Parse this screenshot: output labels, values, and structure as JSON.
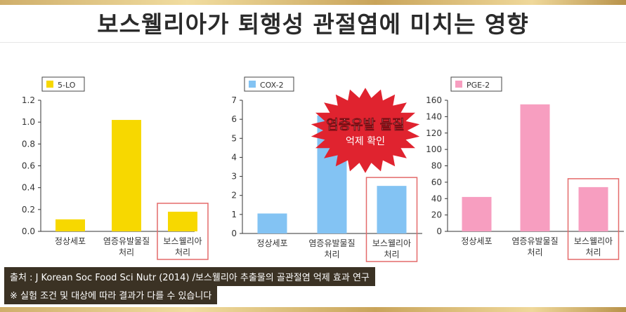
{
  "title": "보스웰리아가 퇴행성 관절염에 미치는 영향",
  "source_note": "출처 : J Korean Soc Food Sci Nutr (2014) /보스웰리아 추출물의 골관절염 억제 효과 연구",
  "disclaimer": "※ 실험 조건 및 대상에 따라 결과가 다를 수 있습니다",
  "badge": {
    "line1": "염증유발 물질",
    "line2": "억제 확인",
    "color": "#e0232f"
  },
  "highlight_color": "#e46a6a",
  "chart_data": [
    {
      "type": "bar",
      "legend": "5-LO",
      "color": "#f7d800",
      "categories": [
        [
          "정상세포"
        ],
        [
          "염증유발물질",
          "처리"
        ],
        [
          "보스웰리아",
          "처리"
        ]
      ],
      "values": [
        0.11,
        1.02,
        0.18
      ],
      "ylim": [
        0,
        1.2
      ],
      "yticks": [
        0.0,
        0.2,
        0.4,
        0.6,
        0.8,
        1.0,
        1.2
      ],
      "ytick_labels": [
        "0.0",
        "0.2",
        "0.4",
        "0.6",
        "0.8",
        "1.0",
        "1.2"
      ],
      "highlight_index": 2
    },
    {
      "type": "bar",
      "legend": "COX-2",
      "color": "#83c3f3",
      "categories": [
        [
          "정상세포"
        ],
        [
          "염증유발물질",
          "처리"
        ],
        [
          "보스웰리아",
          "처리"
        ]
      ],
      "values": [
        1.05,
        6.2,
        2.5
      ],
      "ylim": [
        0,
        7
      ],
      "yticks": [
        0,
        1,
        2,
        3,
        4,
        5,
        6,
        7
      ],
      "ytick_labels": [
        "0",
        "1",
        "2",
        "3",
        "4",
        "5",
        "6",
        "7"
      ],
      "highlight_index": 2
    },
    {
      "type": "bar",
      "legend": "PGE-2",
      "color": "#f79ec0",
      "categories": [
        [
          "정상세포"
        ],
        [
          "염증유발물질",
          "처리"
        ],
        [
          "보스웰리아",
          "처리"
        ]
      ],
      "values": [
        42,
        155,
        54
      ],
      "ylim": [
        0,
        160
      ],
      "yticks": [
        0,
        20,
        40,
        60,
        80,
        100,
        120,
        140,
        160
      ],
      "ytick_labels": [
        "0",
        "20",
        "40",
        "60",
        "80",
        "100",
        "120",
        "140",
        "160"
      ],
      "highlight_index": 2
    }
  ]
}
